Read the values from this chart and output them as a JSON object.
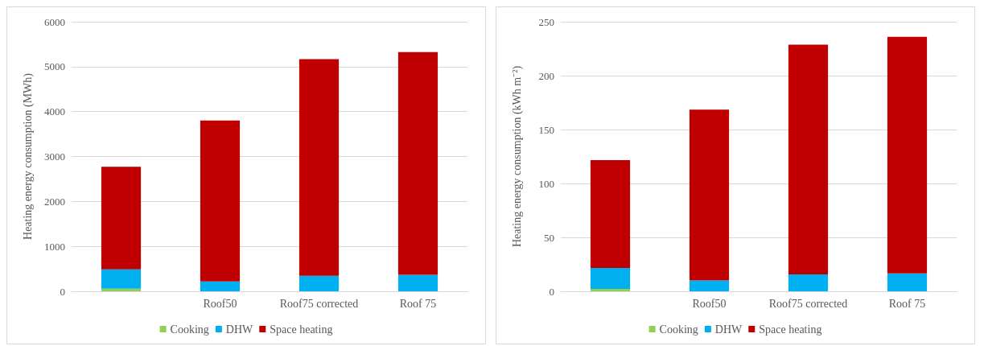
{
  "chart_data": [
    {
      "type": "bar",
      "stacked": true,
      "ylabel": "Heating energy consumption (MWh)",
      "categories": [
        null,
        "Roof50",
        "Roof75 corrected",
        "Roof 75"
      ],
      "ylim": [
        0,
        6000
      ],
      "yticks": [
        0,
        1000,
        2000,
        3000,
        4000,
        5000,
        6000
      ],
      "grid": "y",
      "legend": "bottom",
      "series": [
        {
          "name": "Cooking",
          "color": "#92d050",
          "values": [
            60,
            0,
            0,
            0
          ]
        },
        {
          "name": "DHW",
          "color": "#00b0f0",
          "values": [
            430,
            220,
            345,
            365
          ]
        },
        {
          "name": "Space heating",
          "color": "#c00000",
          "values": [
            2280,
            3580,
            4820,
            4960
          ]
        }
      ]
    },
    {
      "type": "bar",
      "stacked": true,
      "ylabel": "Heating energy consumption (kWh m⁻²)",
      "categories": [
        null,
        "Roof50",
        "Roof75 corrected",
        "Roof 75"
      ],
      "ylim": [
        0,
        250
      ],
      "yticks": [
        0,
        50,
        100,
        150,
        200,
        250
      ],
      "grid": "y",
      "legend": "bottom",
      "series": [
        {
          "name": "Cooking",
          "color": "#92d050",
          "values": [
            2.2,
            0,
            0,
            0
          ]
        },
        {
          "name": "DHW",
          "color": "#00b0f0",
          "values": [
            19.5,
            10,
            15.7,
            16.6
          ]
        },
        {
          "name": "Space heating",
          "color": "#c00000",
          "values": [
            100,
            158.5,
            213,
            219.5
          ]
        }
      ]
    }
  ]
}
